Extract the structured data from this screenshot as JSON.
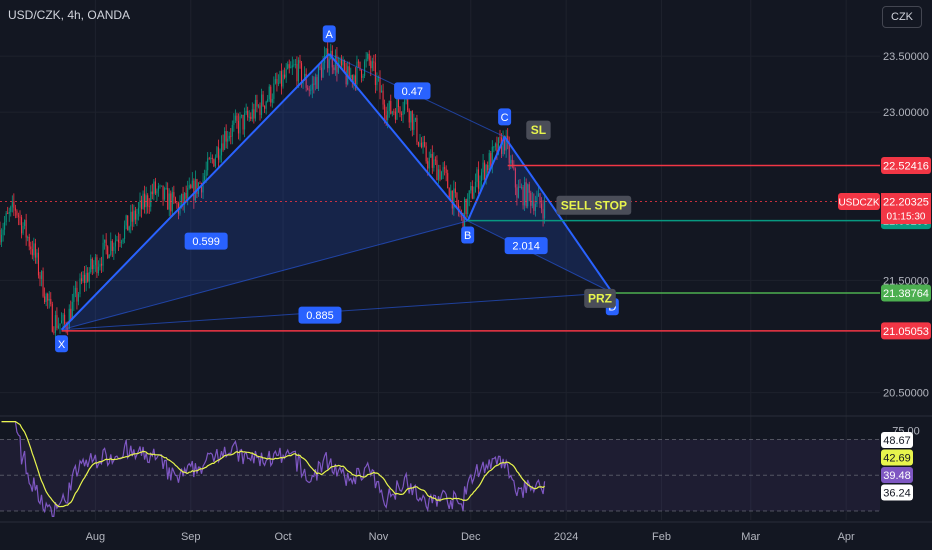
{
  "header": {
    "symbol_title": "USD/CZK, 4h, OANDA",
    "currency_button": "CZK"
  },
  "chart_data": {
    "type": "candlestick",
    "symbol": "USD/CZK",
    "interval": "4h",
    "broker": "OANDA",
    "price_axis": {
      "ticks": [
        {
          "value": 23.5,
          "label": "23.50000"
        },
        {
          "value": 23.0,
          "label": "23.00000"
        },
        {
          "value": 21.5,
          "label": "21.50000"
        },
        {
          "value": 20.5,
          "label": "20.50000"
        }
      ],
      "range": [
        20.3,
        24.0
      ]
    },
    "time_axis": {
      "ticks": [
        {
          "label": "Aug",
          "date": "2023-08-01"
        },
        {
          "label": "Sep",
          "date": "2023-09-01"
        },
        {
          "label": "Oct",
          "date": "2023-10-01"
        },
        {
          "label": "Nov",
          "date": "2023-11-01"
        },
        {
          "label": "Dec",
          "date": "2023-12-01"
        },
        {
          "label": "2024",
          "date": "2024-01-01"
        },
        {
          "label": "Feb",
          "date": "2024-02-01"
        },
        {
          "label": "Mar",
          "date": "2024-03-01"
        },
        {
          "label": "Apr",
          "date": "2024-04-01"
        }
      ],
      "range": [
        "2023-07-01",
        "2024-04-12"
      ]
    },
    "price_path": [
      {
        "date": "2023-07-01",
        "price": 21.95
      },
      {
        "date": "2023-07-06",
        "price": 22.15
      },
      {
        "date": "2023-07-12",
        "price": 21.75
      },
      {
        "date": "2023-07-18",
        "price": 21.15
      },
      {
        "date": "2023-07-22",
        "price": 21.1
      },
      {
        "date": "2023-07-28",
        "price": 21.5
      },
      {
        "date": "2023-08-05",
        "price": 21.8
      },
      {
        "date": "2023-08-12",
        "price": 22.0
      },
      {
        "date": "2023-08-20",
        "price": 22.3
      },
      {
        "date": "2023-08-28",
        "price": 22.15
      },
      {
        "date": "2023-09-05",
        "price": 22.4
      },
      {
        "date": "2023-09-12",
        "price": 22.8
      },
      {
        "date": "2023-09-20",
        "price": 22.95
      },
      {
        "date": "2023-09-28",
        "price": 23.2
      },
      {
        "date": "2023-10-05",
        "price": 23.4
      },
      {
        "date": "2023-10-10",
        "price": 23.2
      },
      {
        "date": "2023-10-16",
        "price": 23.52
      },
      {
        "date": "2023-10-22",
        "price": 23.3
      },
      {
        "date": "2023-10-29",
        "price": 23.45
      },
      {
        "date": "2023-11-04",
        "price": 23.0
      },
      {
        "date": "2023-11-10",
        "price": 23.1
      },
      {
        "date": "2023-11-16",
        "price": 22.6
      },
      {
        "date": "2023-11-22",
        "price": 22.45
      },
      {
        "date": "2023-11-28",
        "price": 22.05
      },
      {
        "date": "2023-12-03",
        "price": 22.4
      },
      {
        "date": "2023-12-08",
        "price": 22.6
      },
      {
        "date": "2023-12-12",
        "price": 22.75
      },
      {
        "date": "2023-12-16",
        "price": 22.3
      },
      {
        "date": "2023-12-20",
        "price": 22.25
      },
      {
        "date": "2023-12-25",
        "price": 22.15
      }
    ],
    "harmonic_pattern": {
      "points": [
        {
          "label": "X",
          "date": "2023-07-21",
          "price": 21.06
        },
        {
          "label": "A",
          "date": "2023-10-16",
          "price": 23.52
        },
        {
          "label": "B",
          "date": "2023-11-30",
          "price": 22.03
        },
        {
          "label": "C",
          "date": "2023-12-12",
          "price": 22.78
        },
        {
          "label": "D",
          "date": "2024-01-16",
          "price": 21.39
        }
      ],
      "ratios": [
        {
          "label": "0.47",
          "date": "2023-11-12",
          "price": 23.19
        },
        {
          "label": "0.599",
          "date": "2023-09-06",
          "price": 21.85
        },
        {
          "label": "0.885",
          "date": "2023-10-13",
          "price": 21.19
        },
        {
          "label": "2.014",
          "date": "2023-12-19",
          "price": 21.81
        }
      ]
    },
    "levels": [
      {
        "name": "SL",
        "price": 22.52416,
        "label": "22.52416",
        "color": "#f23645",
        "start": "2023-12-13"
      },
      {
        "name": "SELL STOP",
        "price": 22.03295,
        "label": "22.03295",
        "color": "#089981",
        "start": "2023-11-30"
      },
      {
        "name": "PRZ",
        "price": 21.38764,
        "label": "21.38764",
        "color": "#4caf50",
        "start": "2024-01-16"
      },
      {
        "name": "X",
        "price": 21.05053,
        "label": "21.05053",
        "color": "#f23645",
        "start": "2023-07-21"
      }
    ],
    "annotations": [
      {
        "text": "SL",
        "date": "2023-12-23",
        "price": 22.84
      },
      {
        "text": "SELL STOP",
        "date": "2024-01-10",
        "price": 22.17
      },
      {
        "text": "PRZ",
        "date": "2024-01-12",
        "price": 21.34
      }
    ],
    "current_price": {
      "symbol": "USDCZK",
      "label": "22.20325",
      "price": 22.20325,
      "countdown": "01:15:30",
      "color": "#f23645"
    },
    "rsi": {
      "ticks": [
        {
          "value": 75,
          "label": "75.00"
        }
      ],
      "range": [
        25,
        82
      ],
      "band": [
        70,
        30
      ],
      "midline": 50,
      "labels": [
        {
          "value": 48.67,
          "label": "48.67",
          "bg": "#ffffff",
          "fg": "#131722"
        },
        {
          "value": 42.69,
          "label": "42.69",
          "bg": "#e8f54d",
          "fg": "#131722"
        },
        {
          "value": 39.48,
          "label": "39.48",
          "bg": "#7e57c2",
          "fg": "#ffffff"
        },
        {
          "value": 36.24,
          "label": "36.24",
          "bg": "#ffffff",
          "fg": "#131722"
        }
      ]
    }
  },
  "colors": {
    "background": "#131722",
    "grid": "#1e222d",
    "up": "#089981",
    "down": "#f23645",
    "pattern_line": "#2962ff",
    "pattern_fill": "#2962ff",
    "label_bg": "#2962ff",
    "annotation_bg": "#4a4d58",
    "annotation_text": "#e8f54d",
    "rsi_line": "#7e57c2",
    "rsi_ma": "#e8f54d"
  }
}
